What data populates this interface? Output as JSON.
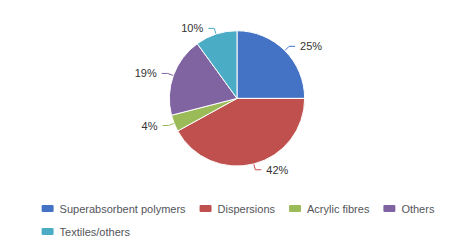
{
  "chart_data": {
    "type": "pie",
    "categories": [
      "Superabsorbent polymers",
      "Dispersions",
      "Acrylic fibres",
      "Others",
      "Textiles/others"
    ],
    "values": [
      25,
      42,
      4,
      19,
      10
    ],
    "value_labels": [
      "25%",
      "42%",
      "4%",
      "19%",
      "10%"
    ],
    "colors": [
      "#4472C4",
      "#C0504D",
      "#9BBB59",
      "#8064A2",
      "#4BACC6"
    ],
    "data_labels": true,
    "legend": "bottom"
  }
}
